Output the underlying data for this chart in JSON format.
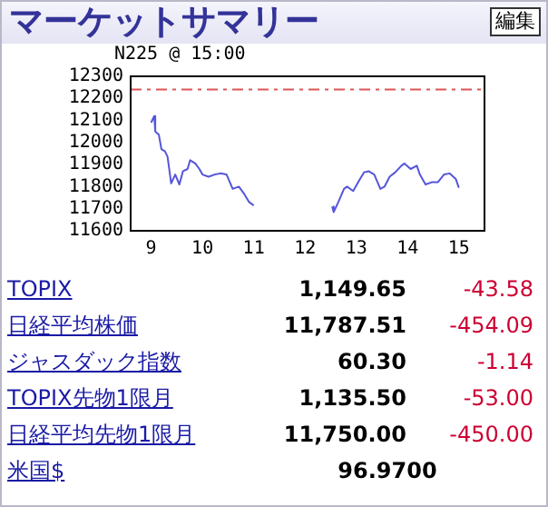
{
  "chart_data": [
    {
      "type": "line",
      "title": "マーケットサマリー",
      "subtitle": "N225 @ 15:00",
      "annotations": [
        "編集"
      ],
      "x": [
        9.0,
        9.06,
        9.08,
        9.15,
        9.2,
        9.27,
        9.32,
        9.39,
        9.47,
        9.55,
        9.62,
        9.71,
        9.76,
        9.86,
        9.94,
        10.0,
        10.12,
        10.24,
        10.35,
        10.47,
        10.59,
        10.71,
        10.82,
        10.91,
        11.0,
        11.8,
        12.53,
        12.56,
        12.65,
        12.76,
        12.82,
        12.94,
        13.06,
        13.15,
        13.24,
        13.35,
        13.47,
        13.55,
        13.65,
        13.76,
        13.88,
        13.94,
        14.06,
        14.18,
        14.24,
        14.35,
        14.47,
        14.59,
        14.71,
        14.82,
        14.94,
        15.0
      ],
      "series": [
        {
          "color": "#5555dd",
          "values": [
            12090,
            12120,
            12050,
            12035,
            11970,
            11960,
            11935,
            11815,
            11855,
            11810,
            11870,
            11880,
            11920,
            11905,
            11880,
            11855,
            11845,
            11855,
            11860,
            11855,
            11790,
            11800,
            11765,
            11730,
            11715,
            null,
            11710,
            11685,
            11730,
            11790,
            11800,
            11780,
            11830,
            11865,
            11870,
            11855,
            11790,
            11800,
            11845,
            11865,
            11895,
            11905,
            11880,
            11895,
            11855,
            11810,
            11820,
            11820,
            11855,
            11860,
            11835,
            11795
          ]
        }
      ],
      "xlim": [
        8.6,
        15.5
      ],
      "xticks": [
        9,
        10,
        11,
        12,
        13,
        14,
        15
      ],
      "ylim": [
        11600,
        12300
      ],
      "yticks": [
        11600,
        11700,
        11800,
        11900,
        12000,
        12100,
        12200,
        12300
      ],
      "ref_lines": [
        {
          "axis": "y",
          "value": 12240,
          "color": "#dd5555",
          "line_style": "dashed"
        }
      ]
    },
    {
      "type": "other",
      "categories": [
        "TOPIX",
        "日経平均株価",
        "ジャスダック指数",
        "TOPIX先物1限月",
        "日経平均先物1限月",
        "米国$"
      ],
      "series": [
        {
          "color": "#000000",
          "values": [
            1149.65,
            11787.51,
            60.3,
            1135.5,
            11750.0,
            96.97
          ],
          "value_labels": [
            "1,149.65",
            "11,787.51",
            "60.30",
            "1,135.50",
            "11,750.00",
            "96.9700"
          ]
        },
        {
          "color": "#cc0033",
          "values": [
            -43.58,
            -454.09,
            -1.14,
            -53.0,
            -450.0,
            null
          ],
          "value_labels": [
            "-43.58",
            "-454.09",
            "-1.14",
            "-53.00",
            "-450.00",
            null
          ]
        }
      ]
    }
  ]
}
